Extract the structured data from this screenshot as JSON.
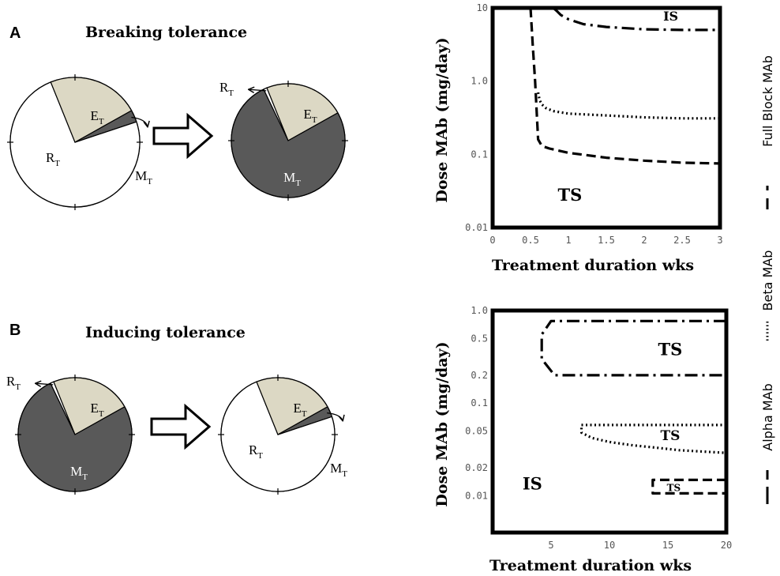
{
  "panels": {
    "a": {
      "letter": "A",
      "title": "Breaking tolerance",
      "pie_before": {
        "E": 23,
        "M": 3,
        "R": 74
      },
      "pie_after": {
        "E": 23,
        "M": 76,
        "R": 1
      }
    },
    "b": {
      "letter": "B",
      "title": "Inducing tolerance",
      "pie_before": {
        "E": 23,
        "M": 76,
        "R": 1
      },
      "pie_after": {
        "E": 23,
        "M": 3,
        "R": 74
      }
    }
  },
  "pie_labels": {
    "e": {
      "main": "E",
      "sub": "T"
    },
    "m": {
      "main": "M",
      "sub": "T"
    },
    "r": {
      "main": "R",
      "sub": "T"
    }
  },
  "colors": {
    "e_fill": "#dcd8c4",
    "m_fill": "#595959",
    "r_fill": "#ffffff",
    "m_text": "#ffffff",
    "ink": "#000000"
  },
  "chart_data": [
    {
      "type": "line",
      "xlabel": "Treatment duration wks",
      "ylabel": "Dose MAb (mg/day)",
      "yscale": "log",
      "xlim": [
        0,
        3
      ],
      "ylim": [
        0.01,
        10
      ],
      "xticks": [
        "0",
        "0.5",
        "1",
        "1.5",
        "2",
        "2.5",
        "3"
      ],
      "yticks": [
        "0.01",
        "0.1",
        "1.0",
        "10"
      ],
      "series": [
        {
          "name": "Full Block MAb",
          "style": "dashdot",
          "x": [
            0.8,
            0.85,
            0.9,
            1.0,
            1.2,
            1.5,
            2.0,
            2.5,
            3.0
          ],
          "y": [
            10,
            9,
            8.0,
            7.0,
            6.0,
            5.5,
            5.1,
            5.0,
            5.0
          ]
        },
        {
          "name": "Beta MAb",
          "style": "dotted",
          "x": [
            0.6,
            0.62,
            0.65,
            0.7,
            0.8,
            1.0,
            1.5,
            2.0,
            2.5,
            3.0
          ],
          "y": [
            0.7,
            0.55,
            0.48,
            0.43,
            0.39,
            0.36,
            0.34,
            0.32,
            0.31,
            0.31
          ]
        },
        {
          "name": "Alpha MAb",
          "style": "dashed",
          "x": [
            0.5,
            0.53,
            0.56,
            0.58,
            0.6,
            0.65,
            0.75,
            1.0,
            1.5,
            2.0,
            2.5,
            3.0
          ],
          "y": [
            10,
            3.0,
            1.0,
            0.4,
            0.16,
            0.13,
            0.12,
            0.105,
            0.09,
            0.082,
            0.077,
            0.075
          ]
        }
      ],
      "annotations": [
        {
          "text": "IS",
          "x": 2.35,
          "y": 7.7,
          "size": "small"
        },
        {
          "text": "TS",
          "x": 1.02,
          "y": 0.028,
          "size": "large"
        }
      ]
    },
    {
      "type": "line",
      "xlabel": "Treatment duration wks",
      "ylabel": "Dose MAb (mg/day)",
      "yscale": "log",
      "xlim": [
        0,
        20
      ],
      "ylim": [
        0.004,
        1.0
      ],
      "xticks": [
        "5",
        "10",
        "15",
        "20"
      ],
      "yticks": [
        "0.01",
        "0.02",
        "0.05",
        "0.1",
        "0.2",
        "0.5",
        "1.0"
      ],
      "series": [
        {
          "name": "Full Block MAb",
          "style": "dashdot",
          "x": [
            20,
            5,
            4.2,
            4.2,
            5.3,
            20
          ],
          "y": [
            0.77,
            0.77,
            0.55,
            0.3,
            0.2,
            0.2
          ]
        },
        {
          "name": "Beta MAb",
          "style": "dotted",
          "x": [
            20,
            7.6,
            7.6,
            8.5,
            10,
            12,
            14,
            16,
            18,
            20
          ],
          "y": [
            0.058,
            0.058,
            0.048,
            0.042,
            0.038,
            0.035,
            0.033,
            0.031,
            0.03,
            0.029
          ]
        },
        {
          "name": "Alpha MAb",
          "style": "dashed",
          "x": [
            20,
            13.7,
            13.7,
            20
          ],
          "y": [
            0.0148,
            0.0148,
            0.0106,
            0.0106
          ]
        }
      ],
      "annotations": [
        {
          "text": "TS",
          "x": 15.2,
          "y": 0.38,
          "size": "large"
        },
        {
          "text": "TS",
          "x": 15.2,
          "y": 0.045,
          "size": "medium"
        },
        {
          "text": "TS",
          "x": 15.5,
          "y": 0.0122,
          "size": "tiny"
        },
        {
          "text": "IS",
          "x": 3.4,
          "y": 0.0135,
          "size": "large"
        }
      ]
    }
  ],
  "legend": {
    "placement": "right, vertical",
    "items": [
      {
        "label": "Full Block MAb",
        "style": "dashdot"
      },
      {
        "label": "Beta MAb",
        "style": "dotted"
      },
      {
        "label": "Alpha MAb",
        "style": "dashed"
      }
    ]
  }
}
